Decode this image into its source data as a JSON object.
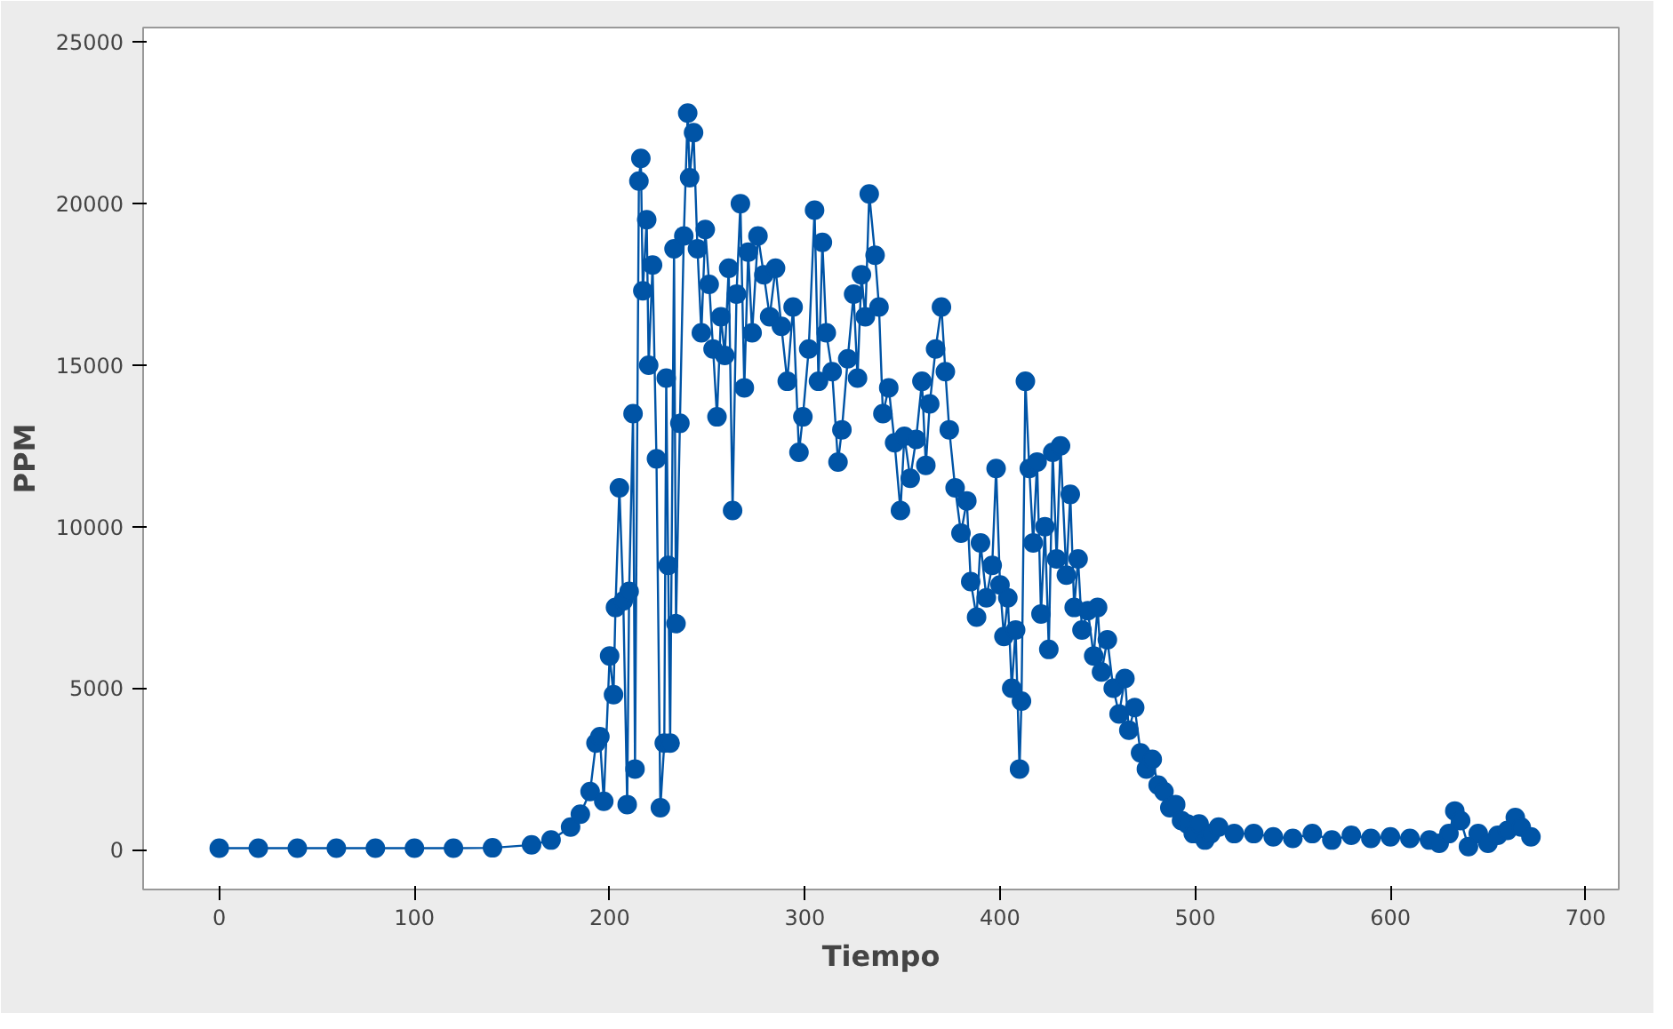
{
  "chart_data": {
    "type": "line",
    "xlabel": "Tiempo",
    "ylabel": "PPM",
    "marker": "circle",
    "line_style": "solid",
    "grid": false,
    "xlim": [
      -39,
      717
    ],
    "ylim": [
      -1230,
      25450
    ],
    "xticks": [
      0,
      100,
      200,
      300,
      400,
      500,
      600,
      700
    ],
    "yticks": [
      0,
      5000,
      10000,
      15000,
      20000,
      25000
    ],
    "series": [
      {
        "color": "#0054a6",
        "x": [
          0,
          20,
          40,
          60,
          80,
          100,
          120,
          140,
          160,
          170,
          180,
          185,
          190,
          193,
          195,
          197,
          200,
          202,
          203,
          205,
          207,
          209,
          210,
          212,
          213,
          215,
          216,
          217,
          219,
          220,
          222,
          224,
          226,
          228,
          229,
          230,
          231,
          233,
          234,
          236,
          238,
          240,
          241,
          243,
          245,
          247,
          249,
          251,
          253,
          255,
          257,
          259,
          261,
          263,
          265,
          267,
          269,
          271,
          273,
          276,
          279,
          282,
          285,
          288,
          291,
          294,
          297,
          299,
          302,
          305,
          307,
          309,
          311,
          314,
          317,
          319,
          322,
          325,
          327,
          329,
          331,
          333,
          336,
          338,
          340,
          343,
          346,
          349,
          351,
          354,
          357,
          360,
          362,
          364,
          367,
          370,
          372,
          374,
          377,
          380,
          383,
          385,
          388,
          390,
          393,
          396,
          398,
          400,
          402,
          404,
          406,
          408,
          410,
          411,
          413,
          415,
          417,
          419,
          421,
          423,
          425,
          427,
          429,
          431,
          434,
          436,
          438,
          440,
          442,
          445,
          448,
          450,
          452,
          455,
          458,
          461,
          464,
          466,
          469,
          472,
          475,
          478,
          481,
          484,
          487,
          490,
          493,
          496,
          499,
          502,
          505,
          508,
          512,
          520,
          530,
          540,
          550,
          560,
          570,
          580,
          590,
          600,
          610,
          620,
          625,
          630,
          633,
          636,
          640,
          645,
          650,
          655,
          660,
          664,
          667,
          672
        ],
        "values": [
          50,
          50,
          50,
          50,
          50,
          50,
          50,
          60,
          150,
          300,
          700,
          1100,
          1800,
          3300,
          3500,
          1500,
          6000,
          4800,
          7500,
          11200,
          7700,
          1400,
          8000,
          13500,
          2500,
          20700,
          21400,
          17300,
          19500,
          15000,
          18100,
          12100,
          1300,
          3300,
          14600,
          8800,
          3300,
          18600,
          7000,
          13200,
          19000,
          22800,
          20800,
          22200,
          18600,
          16000,
          19200,
          17500,
          15500,
          13400,
          16500,
          15300,
          18000,
          10500,
          17200,
          20000,
          14300,
          18500,
          16000,
          19000,
          17800,
          16500,
          18000,
          16200,
          14500,
          16800,
          12300,
          13400,
          15500,
          19800,
          14500,
          18800,
          16000,
          14800,
          12000,
          13000,
          15200,
          17200,
          14600,
          17800,
          16500,
          20300,
          18400,
          16800,
          13500,
          14300,
          12600,
          10500,
          12800,
          11500,
          12700,
          14500,
          11900,
          13800,
          15500,
          16800,
          14800,
          13000,
          11200,
          9800,
          10800,
          8300,
          7200,
          9500,
          7800,
          8800,
          11800,
          8200,
          6600,
          7800,
          5000,
          6800,
          2500,
          4600,
          14500,
          11800,
          9500,
          12000,
          7300,
          10000,
          6200,
          12300,
          9000,
          12500,
          8500,
          11000,
          7500,
          9000,
          6800,
          7400,
          6000,
          7500,
          5500,
          6500,
          5000,
          4200,
          5300,
          3700,
          4400,
          3000,
          2500,
          2800,
          2000,
          1800,
          1300,
          1400,
          900,
          800,
          500,
          800,
          300,
          500,
          700,
          500,
          500,
          400,
          350,
          500,
          300,
          450,
          350,
          400,
          350,
          300,
          200,
          500,
          1200,
          900,
          100,
          500,
          200,
          450,
          600,
          1000,
          700,
          400
        ]
      }
    ]
  }
}
